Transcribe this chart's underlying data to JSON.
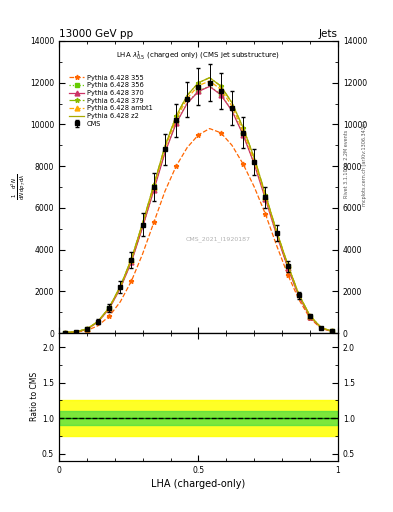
{
  "title": "13000 GeV pp",
  "title_right": "Jets",
  "plot_title": "LHA $\\lambda^{1}_{0.5}$ (charged only) (CMS jet substructure)",
  "xlabel": "LHA (charged-only)",
  "ylabel_main": "$\\frac{1}{\\mathrm{d}N}\\frac{\\mathrm{d}^2N}{\\mathrm{d}p_T\\,\\mathrm{d}\\lambda}$",
  "ylabel_ratio": "Ratio to CMS",
  "watermark": "CMS_2021_I1920187",
  "rivet_label": "Rivet 3.1.10, ≥ 2.2M events",
  "mcplots_label": "mcplots.cern.ch [arXiv:1306.3436]",
  "x_bins": [
    0.0,
    0.04,
    0.08,
    0.12,
    0.16,
    0.2,
    0.24,
    0.28,
    0.32,
    0.36,
    0.4,
    0.44,
    0.48,
    0.52,
    0.56,
    0.6,
    0.64,
    0.68,
    0.72,
    0.76,
    0.8,
    0.84,
    0.88,
    0.92,
    0.96,
    1.0
  ],
  "cms_y": [
    0.02,
    0.06,
    0.18,
    0.55,
    1.2,
    2.2,
    3.5,
    5.2,
    7.0,
    8.8,
    10.2,
    11.2,
    11.8,
    12.0,
    11.6,
    10.8,
    9.6,
    8.2,
    6.5,
    4.8,
    3.2,
    1.8,
    0.8,
    0.25,
    0.08
  ],
  "cms_yerr": [
    0.01,
    0.02,
    0.05,
    0.1,
    0.18,
    0.28,
    0.4,
    0.55,
    0.65,
    0.75,
    0.8,
    0.85,
    0.88,
    0.9,
    0.88,
    0.82,
    0.74,
    0.62,
    0.5,
    0.38,
    0.26,
    0.16,
    0.08,
    0.04,
    0.02
  ],
  "py355_y": [
    0.01,
    0.04,
    0.12,
    0.35,
    0.8,
    1.5,
    2.5,
    3.8,
    5.3,
    6.8,
    8.0,
    8.9,
    9.5,
    9.8,
    9.6,
    9.0,
    8.1,
    7.0,
    5.7,
    4.2,
    2.8,
    1.6,
    0.7,
    0.22,
    0.07
  ],
  "py356_y": [
    0.02,
    0.06,
    0.18,
    0.54,
    1.18,
    2.16,
    3.44,
    5.1,
    6.88,
    8.68,
    10.08,
    11.04,
    11.6,
    11.84,
    11.44,
    10.68,
    9.52,
    8.12,
    6.44,
    4.72,
    3.16,
    1.76,
    0.78,
    0.24,
    0.08
  ],
  "py370_y": [
    0.02,
    0.06,
    0.17,
    0.53,
    1.16,
    2.14,
    3.42,
    5.08,
    6.85,
    8.65,
    10.05,
    11.02,
    11.58,
    11.82,
    11.42,
    10.65,
    9.5,
    8.1,
    6.42,
    4.7,
    3.14,
    1.74,
    0.77,
    0.23,
    0.08
  ],
  "py379_y": [
    0.02,
    0.06,
    0.19,
    0.56,
    1.22,
    2.24,
    3.56,
    5.28,
    7.1,
    8.96,
    10.4,
    11.4,
    12.0,
    12.24,
    11.84,
    11.04,
    9.84,
    8.4,
    6.64,
    4.88,
    3.28,
    1.84,
    0.82,
    0.26,
    0.08
  ],
  "pyambt1_y": [
    0.02,
    0.06,
    0.18,
    0.55,
    1.2,
    2.2,
    3.52,
    5.22,
    7.02,
    8.86,
    10.26,
    11.26,
    11.86,
    12.08,
    11.68,
    10.88,
    9.68,
    8.26,
    6.54,
    4.82,
    3.24,
    1.82,
    0.81,
    0.25,
    0.08
  ],
  "pyz2_y": [
    0.02,
    0.06,
    0.19,
    0.56,
    1.22,
    2.24,
    3.56,
    5.28,
    7.1,
    8.96,
    10.4,
    11.4,
    12.0,
    12.24,
    11.84,
    11.04,
    9.84,
    8.4,
    6.64,
    4.88,
    3.28,
    1.84,
    0.82,
    0.26,
    0.08
  ],
  "colors": {
    "cms": "#000000",
    "py355": "#ff6600",
    "py356": "#66cc00",
    "py370": "#cc3366",
    "py379": "#88bb00",
    "pyambt1": "#ffaa00",
    "pyz2": "#aaaa00"
  },
  "ylim_main": [
    0,
    14000
  ],
  "ylim_ratio": [
    0.4,
    2.2
  ],
  "yticks_main": [
    0,
    2000,
    4000,
    6000,
    8000,
    10000,
    12000,
    14000
  ],
  "yticks_ratio": [
    0.5,
    1.0,
    1.5,
    2.0
  ]
}
